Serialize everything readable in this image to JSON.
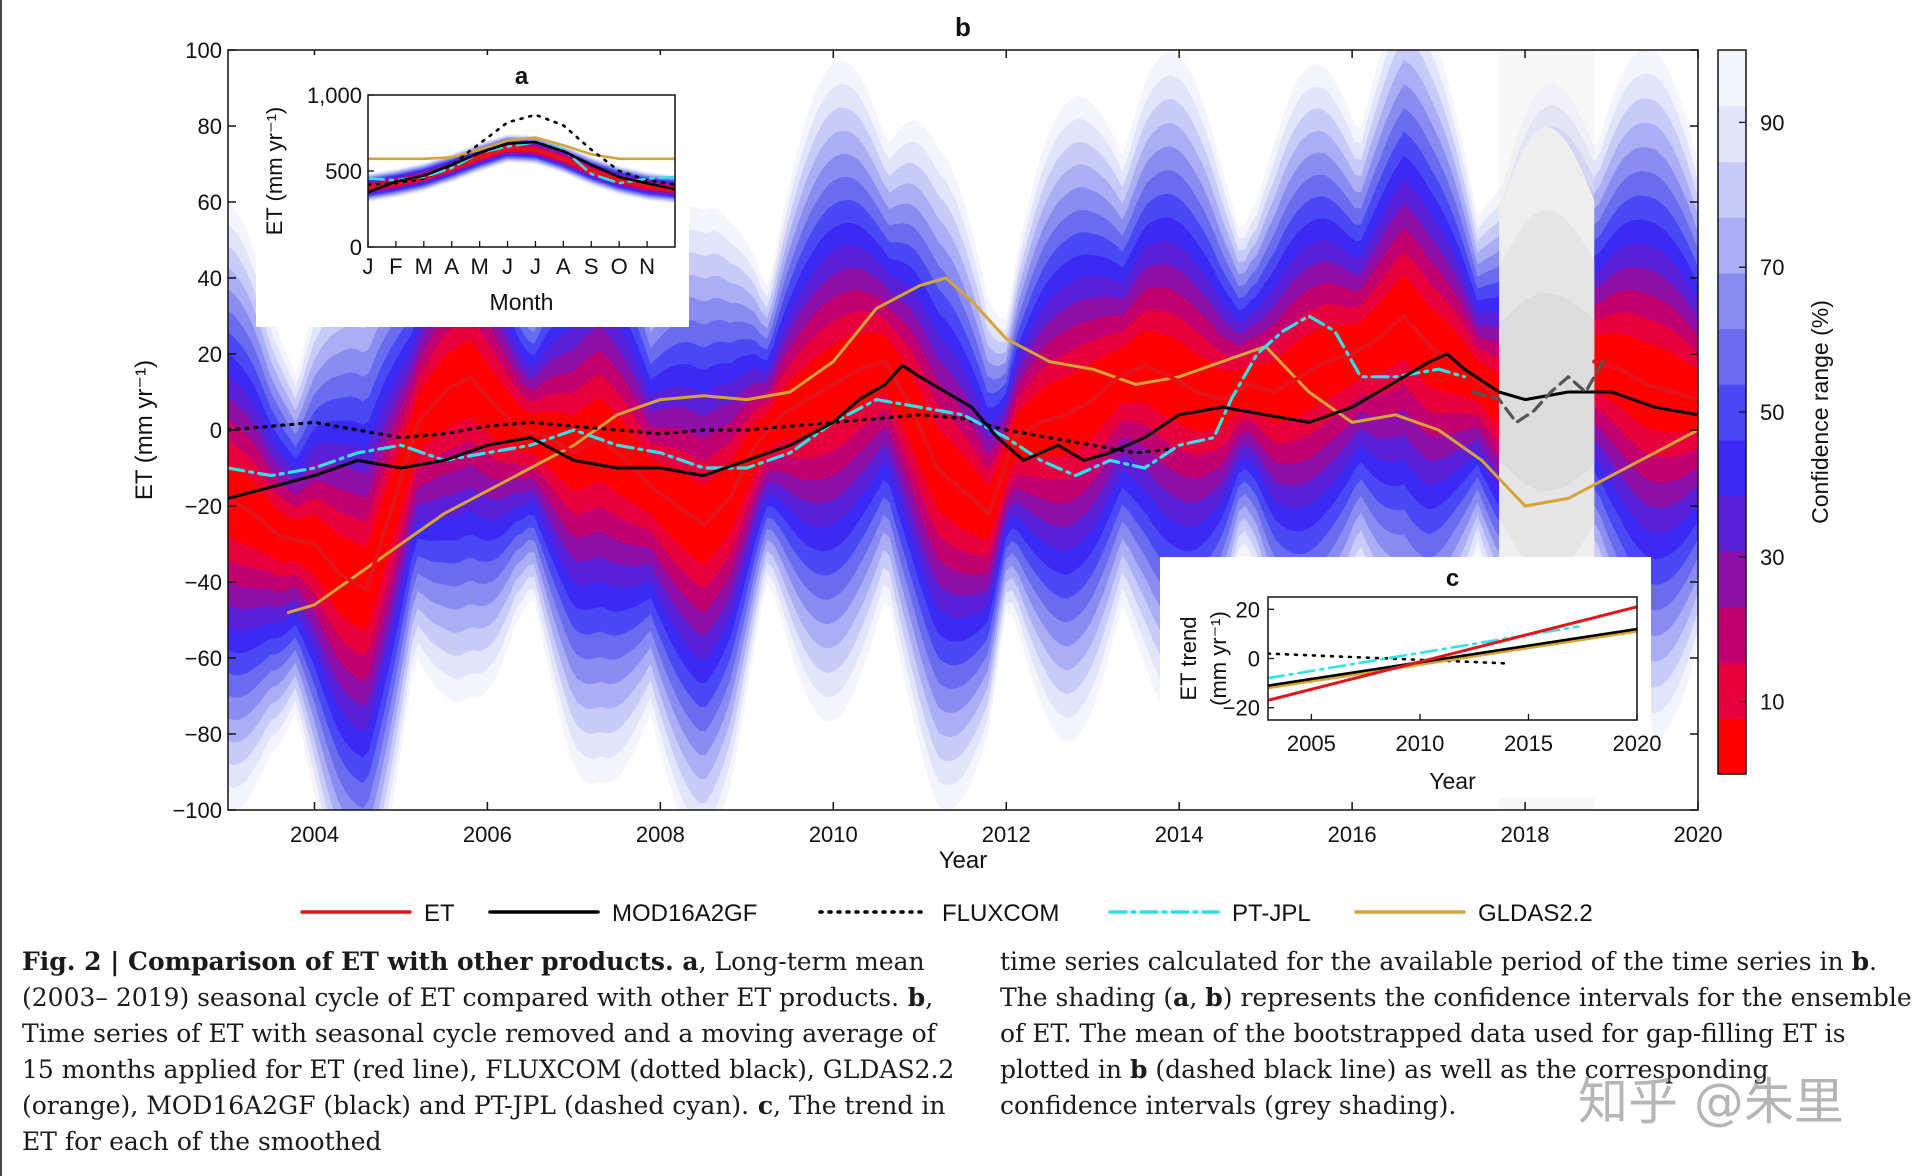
{
  "chart_data": [
    {
      "id": "b",
      "type": "line",
      "title": "b",
      "xlabel": "Year",
      "ylabel": "ET (mm yr⁻¹)",
      "xlim": [
        2003,
        2020
      ],
      "ylim": [
        -100,
        100
      ],
      "xticks": [
        2004,
        2006,
        2008,
        2010,
        2012,
        2014,
        2016,
        2018,
        2020
      ],
      "yticks": [
        100,
        80,
        60,
        40,
        20,
        0,
        -20,
        -40,
        -60,
        -80,
        -100
      ],
      "ytick_labels": [
        "100",
        "80",
        "60",
        "40",
        "20",
        "0",
        "−20",
        "−40",
        "−60",
        "−80",
        "−100"
      ],
      "gap_period": [
        2017.7,
        2018.8
      ],
      "series": [
        {
          "name": "ET",
          "color": "#e3141b",
          "style": "solid",
          "x": [
            2003.0,
            2003.3,
            2003.6,
            2004.0,
            2004.3,
            2004.6,
            2004.9,
            2005.2,
            2005.5,
            2005.8,
            2006.1,
            2006.4,
            2006.7,
            2007.0,
            2007.3,
            2007.6,
            2007.9,
            2008.2,
            2008.5,
            2008.8,
            2009.1,
            2009.4,
            2009.7,
            2010.0,
            2010.3,
            2010.6,
            2010.9,
            2011.2,
            2011.5,
            2011.8,
            2012.1,
            2012.4,
            2012.7,
            2013.0,
            2013.3,
            2013.6,
            2013.9,
            2014.2,
            2014.5,
            2014.8,
            2015.1,
            2015.4,
            2015.7,
            2016.0,
            2016.3,
            2016.6,
            2016.9,
            2017.2,
            2017.5,
            2017.7,
            2018.8,
            2019.1,
            2019.4,
            2019.7,
            2020.0
          ],
          "y": [
            -18,
            -22,
            -28,
            -30,
            -38,
            -42,
            -20,
            2,
            10,
            14,
            6,
            0,
            -2,
            -6,
            -2,
            -8,
            -15,
            -20,
            -25,
            -18,
            -4,
            4,
            8,
            12,
            16,
            18,
            6,
            -10,
            -16,
            -22,
            -2,
            2,
            4,
            8,
            14,
            17,
            14,
            10,
            8,
            12,
            10,
            14,
            18,
            20,
            24,
            30,
            22,
            18,
            12,
            8,
            18,
            16,
            12,
            10,
            8
          ]
        },
        {
          "name": "MOD16A2GF",
          "color": "#000000",
          "style": "solid",
          "x": [
            2003.0,
            2003.5,
            2004.0,
            2004.5,
            2005.0,
            2005.5,
            2006.0,
            2006.5,
            2007.0,
            2007.5,
            2008.0,
            2008.5,
            2009.0,
            2009.5,
            2010.0,
            2010.3,
            2010.6,
            2010.8,
            2011.0,
            2011.3,
            2011.6,
            2011.9,
            2012.2,
            2012.6,
            2012.9,
            2013.2,
            2013.6,
            2014.0,
            2014.5,
            2015.0,
            2015.5,
            2016.0,
            2016.3,
            2016.6,
            2016.9,
            2017.1,
            2017.3,
            2017.7,
            2018.0,
            2018.5,
            2019.0,
            2019.5,
            2020.0
          ],
          "y": [
            -18,
            -15,
            -12,
            -8,
            -10,
            -8,
            -4,
            -2,
            -8,
            -10,
            -10,
            -12,
            -8,
            -4,
            2,
            8,
            12,
            17,
            14,
            10,
            6,
            -2,
            -8,
            -4,
            -8,
            -6,
            -2,
            4,
            6,
            4,
            2,
            6,
            10,
            14,
            18,
            20,
            16,
            10,
            8,
            10,
            10,
            6,
            4
          ]
        },
        {
          "name": "FLUXCOM",
          "color": "#000000",
          "style": "dotted",
          "x": [
            2003.0,
            2003.5,
            2004.0,
            2004.5,
            2005.0,
            2005.5,
            2006.0,
            2006.5,
            2007.0,
            2007.5,
            2008.0,
            2008.5,
            2009.0,
            2009.5,
            2010.0,
            2010.5,
            2011.0,
            2011.5,
            2012.0,
            2012.5,
            2013.0,
            2013.5,
            2013.9
          ],
          "y": [
            0,
            1,
            2,
            0,
            -2,
            -1,
            1,
            2,
            1,
            0,
            -1,
            0,
            0,
            1,
            2,
            3,
            4,
            3,
            0,
            -2,
            -4,
            -6,
            -5
          ]
        },
        {
          "name": "PT-JPL",
          "color": "#33e0e8",
          "style": "dashdot",
          "x": [
            2003.0,
            2003.5,
            2004.0,
            2004.5,
            2005.0,
            2005.5,
            2006.0,
            2006.5,
            2007.0,
            2007.5,
            2008.0,
            2008.5,
            2009.0,
            2009.5,
            2010.0,
            2010.5,
            2011.0,
            2011.5,
            2012.0,
            2012.4,
            2012.8,
            2013.2,
            2013.6,
            2014.0,
            2014.4,
            2014.6,
            2014.9,
            2015.2,
            2015.5,
            2015.8,
            2016.1,
            2016.5,
            2017.0,
            2017.3
          ],
          "y": [
            -10,
            -12,
            -10,
            -6,
            -4,
            -8,
            -6,
            -4,
            0,
            -4,
            -6,
            -10,
            -10,
            -6,
            2,
            8,
            6,
            4,
            -2,
            -8,
            -12,
            -8,
            -10,
            -4,
            -2,
            8,
            20,
            26,
            30,
            26,
            14,
            14,
            16,
            14
          ]
        },
        {
          "name": "GLDAS2.2",
          "color": "#d4a438",
          "style": "solid",
          "x": [
            2003.7,
            2004.0,
            2004.5,
            2005.0,
            2005.5,
            2006.0,
            2006.5,
            2007.0,
            2007.5,
            2008.0,
            2008.5,
            2009.0,
            2009.5,
            2010.0,
            2010.5,
            2011.0,
            2011.3,
            2011.6,
            2012.0,
            2012.5,
            2013.0,
            2013.5,
            2014.0,
            2014.5,
            2015.0,
            2015.5,
            2016.0,
            2016.5,
            2017.0,
            2017.5,
            2018.0,
            2018.5,
            2019.0,
            2019.5,
            2020.0
          ],
          "y": [
            -48,
            -46,
            -38,
            -30,
            -22,
            -16,
            -10,
            -4,
            4,
            8,
            9,
            8,
            10,
            18,
            32,
            38,
            40,
            34,
            24,
            18,
            16,
            12,
            14,
            18,
            22,
            10,
            2,
            4,
            0,
            -8,
            -20,
            -18,
            -12,
            -6,
            0
          ]
        },
        {
          "name": "Gap-filled mean",
          "color": "#555555",
          "style": "dashed",
          "show_in_legend": false,
          "x": [
            2017.4,
            2017.7,
            2017.9,
            2018.1,
            2018.3,
            2018.5,
            2018.7,
            2018.9
          ],
          "y": [
            10,
            8,
            2,
            5,
            10,
            14,
            10,
            18
          ]
        }
      ],
      "legend": [
        "ET",
        "MOD16A2GF",
        "FLUXCOM",
        "PT-JPL",
        "GLDAS2.2"
      ],
      "legend_position": "bottom",
      "colorbar": {
        "label": "Confidence range (%)",
        "ticks": [
          10,
          30,
          50,
          70,
          90
        ],
        "colors": [
          "#ff0000",
          "#e8003c",
          "#c20070",
          "#8e10a8",
          "#5a20d8",
          "#3a2af4",
          "#4a48f4",
          "#6a6cf0",
          "#8a8cf2",
          "#aaaef5",
          "#c8cbf8",
          "#e2e4fb",
          "#f4f4fd"
        ]
      }
    },
    {
      "id": "a",
      "type": "line",
      "title": "a",
      "xlabel": "Month",
      "ylabel": "ET (mm yr⁻¹)",
      "xlim": [
        1,
        12
      ],
      "ylim": [
        0,
        1000
      ],
      "xtick_labels": [
        "J",
        "F",
        "M",
        "A",
        "M",
        "J",
        "J",
        "A",
        "S",
        "O",
        "N"
      ],
      "ytick_labels": [
        "0",
        "500",
        "1,000"
      ],
      "yticks": [
        0,
        500,
        1000
      ],
      "series": [
        {
          "name": "ET",
          "color": "#e3141b",
          "style": "solid",
          "x": [
            1,
            2,
            3,
            4,
            5,
            6,
            7,
            8,
            9,
            10,
            11,
            12
          ],
          "y": [
            390,
            420,
            460,
            520,
            590,
            650,
            640,
            580,
            500,
            440,
            400,
            380
          ]
        },
        {
          "name": "MOD16A2GF",
          "color": "#000000",
          "style": "solid",
          "x": [
            1,
            2,
            3,
            4,
            5,
            6,
            7,
            8,
            9,
            10,
            11,
            12
          ],
          "y": [
            360,
            430,
            470,
            540,
            620,
            680,
            690,
            630,
            540,
            460,
            420,
            380
          ]
        },
        {
          "name": "FLUXCOM",
          "color": "#000000",
          "style": "dotted",
          "x": [
            1,
            2,
            3,
            4,
            5,
            6,
            7,
            8,
            9,
            10,
            11,
            12
          ],
          "y": [
            410,
            420,
            450,
            540,
            680,
            820,
            870,
            800,
            640,
            500,
            440,
            410
          ]
        },
        {
          "name": "PT-JPL",
          "color": "#33e0e8",
          "style": "dashdot",
          "x": [
            1,
            2,
            3,
            4,
            5,
            6,
            7,
            8,
            9,
            10,
            11,
            12
          ],
          "y": [
            450,
            440,
            460,
            520,
            620,
            660,
            690,
            640,
            480,
            420,
            450,
            460
          ]
        },
        {
          "name": "GLDAS2.2",
          "color": "#d4a438",
          "style": "solid",
          "x": [
            1,
            2,
            3,
            4,
            5,
            6,
            7,
            8,
            9,
            10,
            11,
            12
          ],
          "y": [
            580,
            580,
            580,
            590,
            640,
            700,
            720,
            670,
            610,
            580,
            580,
            580
          ]
        }
      ]
    },
    {
      "id": "c",
      "type": "line",
      "title": "c",
      "xlabel": "Year",
      "ylabel_line1": "ET trend",
      "ylabel_line2": "(mm yr⁻¹)",
      "xlim": [
        2003,
        2020
      ],
      "ylim": [
        -25,
        25
      ],
      "xticks": [
        2005,
        2010,
        2015,
        2020
      ],
      "yticks": [
        20,
        0,
        -20
      ],
      "ytick_labels": [
        "20",
        "0",
        "−20"
      ],
      "series": [
        {
          "name": "ET",
          "color": "#e3141b",
          "style": "solid",
          "x": [
            2003,
            2020
          ],
          "y": [
            -17,
            21
          ]
        },
        {
          "name": "MOD16A2GF",
          "color": "#000000",
          "style": "solid",
          "x": [
            2003,
            2020
          ],
          "y": [
            -11,
            12
          ]
        },
        {
          "name": "FLUXCOM",
          "color": "#000000",
          "style": "dotted",
          "x": [
            2003,
            2014
          ],
          "y": [
            2,
            -2
          ]
        },
        {
          "name": "PT-JPL",
          "color": "#33e0e8",
          "style": "dashdot",
          "x": [
            2003,
            2017.3
          ],
          "y": [
            -8,
            13
          ]
        },
        {
          "name": "GLDAS2.2",
          "color": "#d4a438",
          "style": "solid",
          "x": [
            2003,
            2020
          ],
          "y": [
            -12,
            11
          ]
        }
      ]
    }
  ],
  "caption": {
    "left_label": "Fig. 2",
    "left_sep": " | ",
    "left_title": "Comparison of ET with other products.",
    "left_a": " a",
    "left_text1": ", Long-term mean (2003– 2019) seasonal cycle of ET compared with other ET products.",
    "left_b": " b",
    "left_text2": ", Time series of ET with seasonal cycle removed and a moving average of 15 months applied for ET (red line), FLUXCOM (dotted black), GLDAS2.2 (orange), MOD16A2GF (black) and PT-JPL (dashed cyan).",
    "left_c": " c",
    "left_text3": ", The trend in ET for each of the smoothed",
    "right_text1": "time series calculated for the available period of the time series in ",
    "right_b1": "b",
    "right_text2": ". The shading (",
    "right_a": "a",
    "right_comma": ", ",
    "right_b2": "b",
    "right_text3": ") represents the confidence intervals for the ensemble of ET. The mean of the bootstrapped data used for gap-filling ET is plotted in ",
    "right_b3": "b",
    "right_text4": " (dashed black line) as well as the corresponding confidence intervals (grey shading)."
  },
  "watermark": "知乎 @朱里"
}
